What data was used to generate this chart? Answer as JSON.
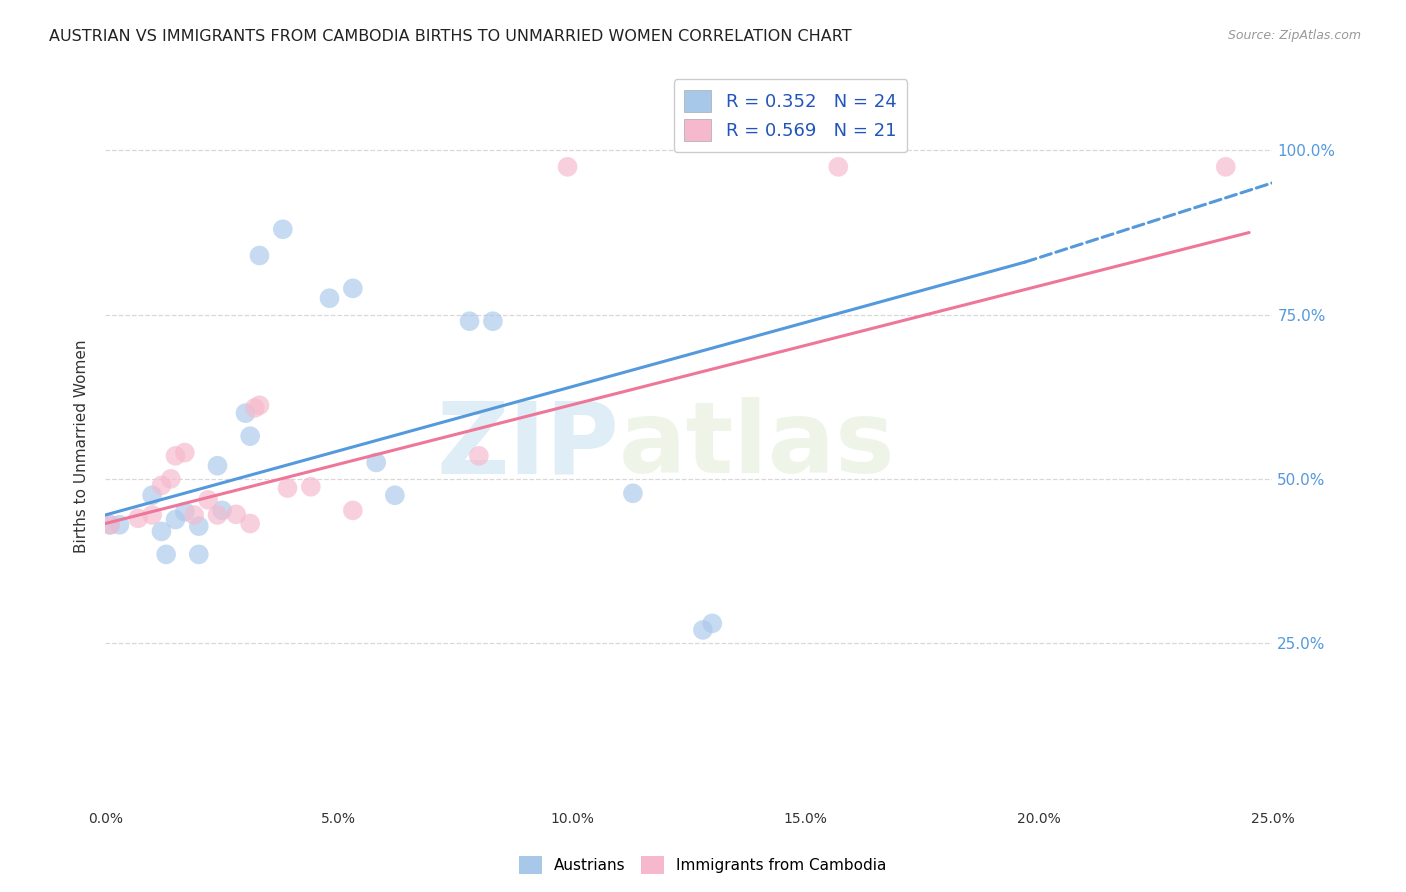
{
  "title": "AUSTRIAN VS IMMIGRANTS FROM CAMBODIA BIRTHS TO UNMARRIED WOMEN CORRELATION CHART",
  "source": "Source: ZipAtlas.com",
  "ylabel": "Births to Unmarried Women",
  "xlim": [
    0.0,
    0.25
  ],
  "ylim": [
    0.0,
    1.1
  ],
  "xtick_labels": [
    "0.0%",
    "5.0%",
    "10.0%",
    "15.0%",
    "20.0%",
    "25.0%"
  ],
  "xtick_vals": [
    0.0,
    0.05,
    0.1,
    0.15,
    0.2,
    0.25
  ],
  "ytick_labels": [
    "25.0%",
    "50.0%",
    "75.0%",
    "100.0%"
  ],
  "ytick_vals": [
    0.25,
    0.5,
    0.75,
    1.0
  ],
  "watermark_zip": "ZIP",
  "watermark_atlas": "atlas",
  "legend_r1": "R = 0.352   N = 24",
  "legend_r2": "R = 0.569   N = 21",
  "blue_color": "#a8c8ea",
  "pink_color": "#f5b8cc",
  "blue_line_color": "#5599dd",
  "pink_line_color": "#ee7799",
  "blue_scatter": [
    [
      0.001,
      0.43
    ],
    [
      0.003,
      0.43
    ],
    [
      0.01,
      0.475
    ],
    [
      0.012,
      0.42
    ],
    [
      0.013,
      0.385
    ],
    [
      0.015,
      0.438
    ],
    [
      0.017,
      0.45
    ],
    [
      0.02,
      0.428
    ],
    [
      0.02,
      0.385
    ],
    [
      0.024,
      0.52
    ],
    [
      0.025,
      0.452
    ],
    [
      0.03,
      0.6
    ],
    [
      0.031,
      0.565
    ],
    [
      0.033,
      0.84
    ],
    [
      0.038,
      0.88
    ],
    [
      0.048,
      0.775
    ],
    [
      0.053,
      0.79
    ],
    [
      0.058,
      0.525
    ],
    [
      0.062,
      0.475
    ],
    [
      0.078,
      0.74
    ],
    [
      0.083,
      0.74
    ],
    [
      0.113,
      0.478
    ],
    [
      0.128,
      0.27
    ],
    [
      0.13,
      0.28
    ]
  ],
  "pink_scatter": [
    [
      0.001,
      0.43
    ],
    [
      0.007,
      0.44
    ],
    [
      0.01,
      0.445
    ],
    [
      0.012,
      0.49
    ],
    [
      0.014,
      0.5
    ],
    [
      0.015,
      0.535
    ],
    [
      0.017,
      0.54
    ],
    [
      0.019,
      0.445
    ],
    [
      0.022,
      0.468
    ],
    [
      0.024,
      0.445
    ],
    [
      0.028,
      0.446
    ],
    [
      0.031,
      0.432
    ],
    [
      0.032,
      0.608
    ],
    [
      0.033,
      0.612
    ],
    [
      0.039,
      0.486
    ],
    [
      0.044,
      0.488
    ],
    [
      0.053,
      0.452
    ],
    [
      0.08,
      0.535
    ],
    [
      0.099,
      0.975
    ],
    [
      0.157,
      0.975
    ],
    [
      0.24,
      0.975
    ]
  ],
  "blue_line_solid": [
    [
      0.0,
      0.445
    ],
    [
      0.197,
      0.83
    ]
  ],
  "blue_line_dash": [
    [
      0.197,
      0.83
    ],
    [
      0.255,
      0.962
    ]
  ],
  "pink_line_solid": [
    [
      0.0,
      0.432
    ],
    [
      0.245,
      0.875
    ]
  ],
  "grid_color": "#d8d8d8",
  "grid_linestyle": "--"
}
